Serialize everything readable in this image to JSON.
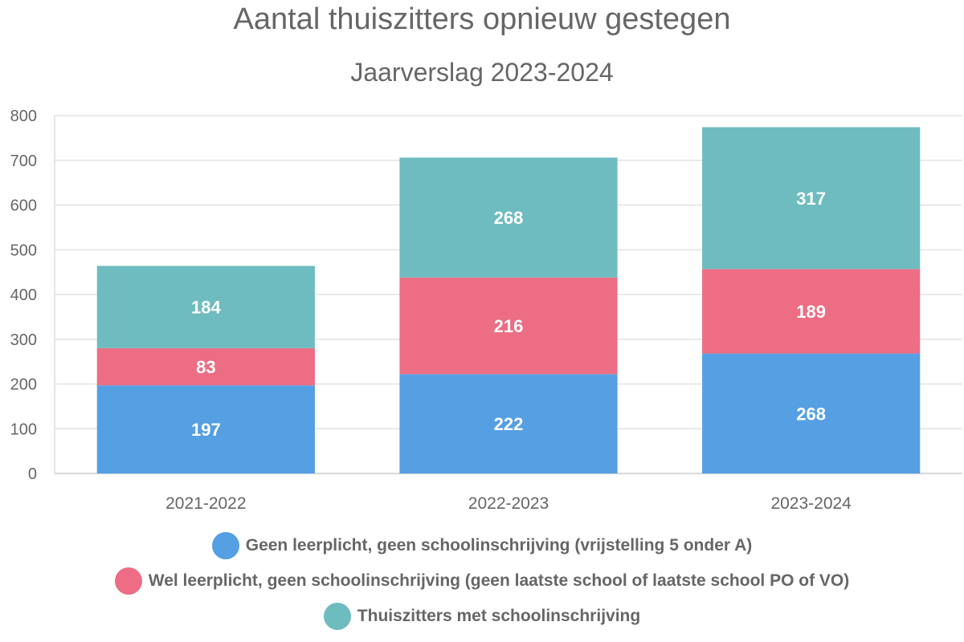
{
  "chart_data": {
    "type": "bar",
    "stacked": true,
    "title": "Aantal thuiszitters opnieuw gestegen",
    "subtitle": "Jaarverslag 2023-2024",
    "categories": [
      "2021-2022",
      "2022-2023",
      "2023-2024"
    ],
    "series": [
      {
        "name": "Geen leerplicht, geen schoolinschrijving (vrijstelling 5 onder A)",
        "values": [
          197,
          222,
          268
        ],
        "color": "#559fe3"
      },
      {
        "name": "Wel leerplicht, geen schoolinschrijving (geen laatste school of laatste school PO of VO)",
        "values": [
          83,
          216,
          189
        ],
        "color": "#ec6d84"
      },
      {
        "name": "Thuiszitters met schoolinschrijving",
        "values": [
          184,
          268,
          317
        ],
        "color": "#6ebcbf"
      }
    ],
    "ylim": [
      0,
      800
    ],
    "yticks": [
      0,
      100,
      200,
      300,
      400,
      500,
      600,
      700,
      800
    ],
    "grid": true,
    "legend_position": "bottom"
  }
}
